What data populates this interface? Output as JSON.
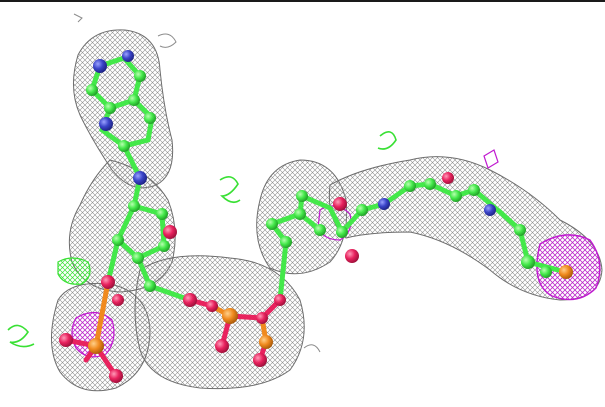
{
  "image": {
    "subject": "electron-density-mesh-molecule-render",
    "colors": {
      "background": "#ffffff",
      "frame_line": "#1a1a1a",
      "mesh": "#7f7f7f",
      "carbon": "#44e84a",
      "nitrogen": "#3a44c8",
      "oxygen": "#e8225e",
      "phosphorus": "#f08a1e",
      "positive_difference": "#39e034",
      "negative_difference": "#c01ad0"
    }
  }
}
